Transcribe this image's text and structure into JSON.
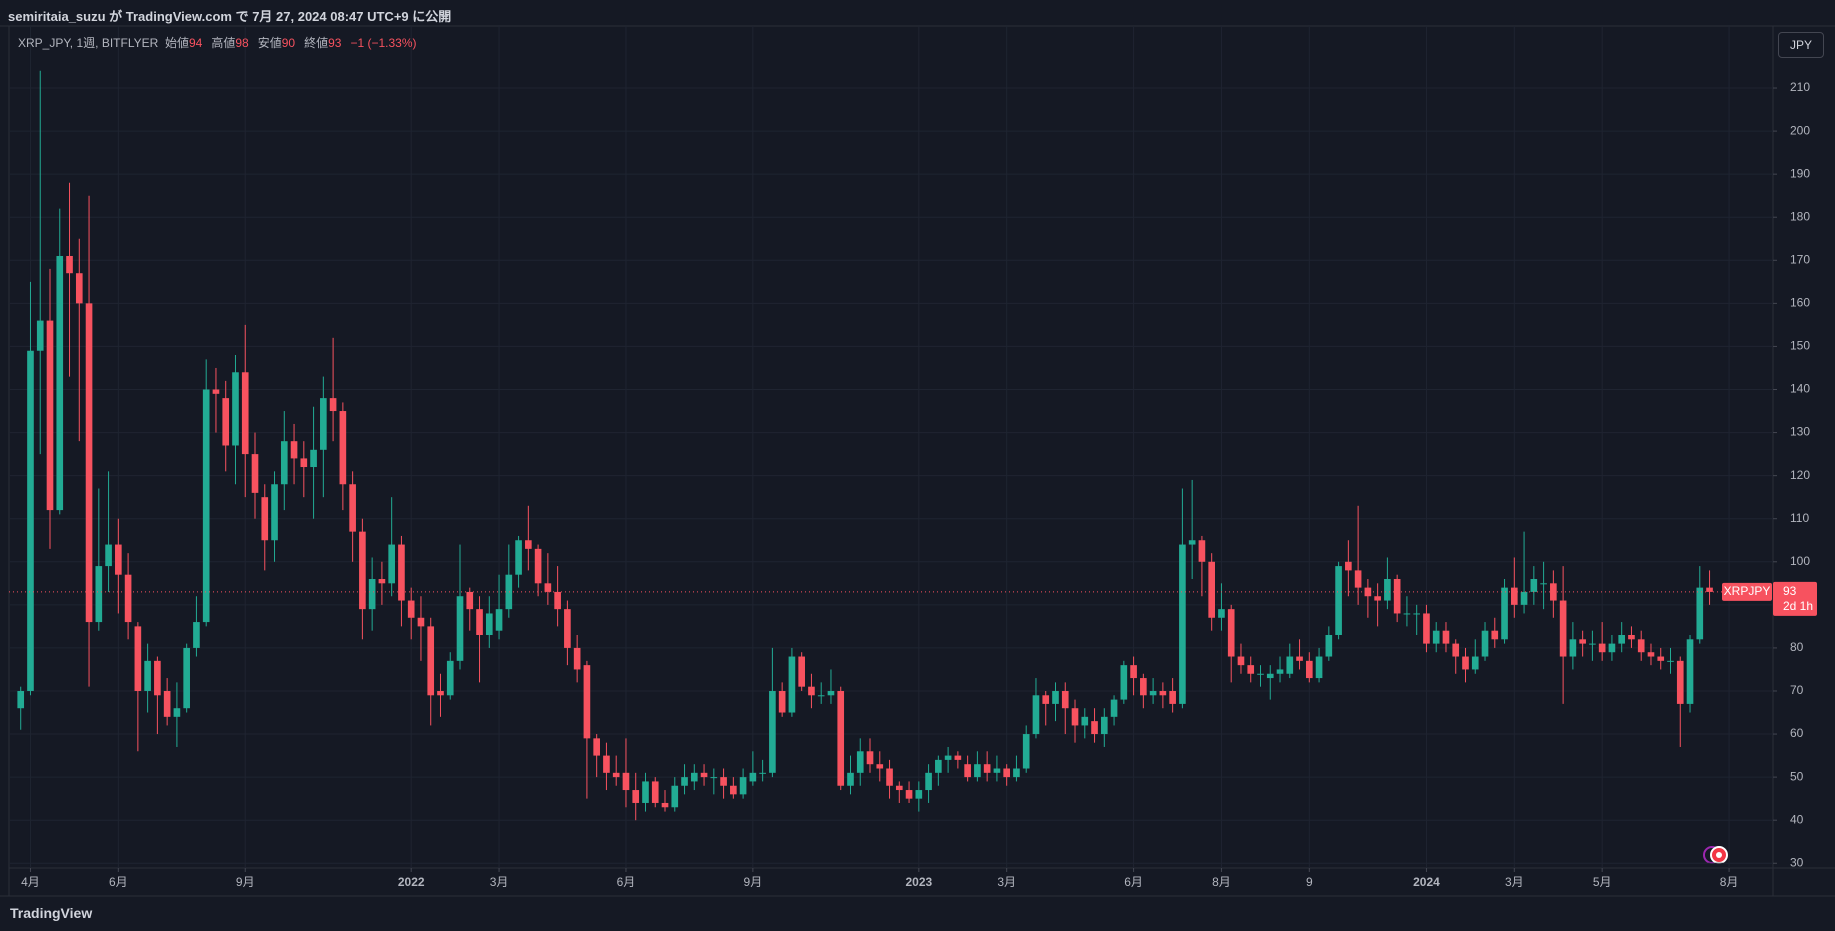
{
  "header": {
    "text": "semiritaia_suzu が TradingView.com で 7月 27, 2024 08:47 UTC+9 に公開"
  },
  "footer": {
    "text": "TradingView"
  },
  "currency_button": "JPY",
  "chart_data": {
    "type": "candlestick",
    "legend": {
      "symbol": "XRP_JPY, 1週, BITFLYER",
      "open_label": "始値",
      "high_label": "高値",
      "low_label": "安値",
      "close_label": "終値",
      "change_label": "−1 (−1.33%)"
    },
    "price_tag": {
      "name": "XRPJPY",
      "countdown": "2d 1h"
    },
    "up_color": "#22ab94",
    "down_color": "#f7525f",
    "grid": true,
    "xlim": [
      -1.2,
      179.5
    ],
    "xticks": [
      {
        "value": 1,
        "label": "4月"
      },
      {
        "value": 10,
        "label": "6月"
      },
      {
        "value": 23,
        "label": "9月"
      },
      {
        "value": 40,
        "label": "2022"
      },
      {
        "value": 49,
        "label": "3月"
      },
      {
        "value": 62,
        "label": "6月"
      },
      {
        "value": 75,
        "label": "9月"
      },
      {
        "value": 92,
        "label": "2023"
      },
      {
        "value": 101,
        "label": "3月"
      },
      {
        "value": 114,
        "label": "6月"
      },
      {
        "value": 123,
        "label": "8月"
      },
      {
        "value": 132,
        "label": "9"
      },
      {
        "value": 144,
        "label": "2024"
      },
      {
        "value": 153,
        "label": "3月"
      },
      {
        "value": 162,
        "label": "5月"
      },
      {
        "value": 175,
        "label": "8月"
      }
    ],
    "ylim": [
      28.9,
      224.4
    ],
    "yticks": [
      30,
      40,
      50,
      60,
      70,
      80,
      90,
      100,
      110,
      120,
      130,
      140,
      150,
      160,
      170,
      180,
      190,
      200,
      210
    ],
    "open": [
      66,
      70,
      149,
      156,
      112,
      171,
      167,
      160,
      86,
      99,
      104,
      97,
      85,
      70,
      77,
      70,
      64,
      66,
      80,
      86,
      140,
      138,
      127,
      144,
      125,
      115,
      105,
      118,
      128,
      124,
      122,
      126,
      138,
      135,
      118,
      107,
      89,
      96,
      95,
      104,
      91,
      87,
      85,
      70,
      69,
      77,
      93,
      89,
      83,
      84,
      89,
      97,
      105,
      103,
      95,
      93,
      89,
      80,
      76,
      59,
      55,
      51,
      51,
      47,
      44,
      49,
      44,
      43,
      48,
      49,
      51,
      50,
      50,
      48,
      46,
      49,
      51,
      51,
      70,
      65,
      78,
      71,
      69,
      69,
      70,
      48,
      51,
      56,
      53,
      52,
      48,
      47,
      45,
      47,
      51,
      54,
      55,
      53,
      50,
      53,
      51,
      52,
      50,
      52,
      60,
      69,
      67,
      70,
      66,
      62,
      63,
      60,
      64,
      68,
      76,
      73,
      69,
      70,
      70,
      67,
      104,
      105,
      100,
      87,
      89,
      78,
      76,
      74,
      73,
      74,
      74,
      78,
      77,
      73,
      78,
      83,
      100,
      98,
      94,
      92,
      91,
      96,
      88,
      88,
      88,
      81,
      84,
      81,
      78,
      75,
      78,
      84,
      82,
      94,
      90,
      93,
      95,
      95,
      91,
      78,
      82,
      81,
      81,
      79,
      81,
      83,
      82,
      79,
      78,
      77,
      77,
      67,
      82,
      94
    ],
    "high": [
      71,
      165,
      214,
      168,
      182,
      188,
      175,
      185,
      117,
      121,
      110,
      102,
      86,
      81,
      78,
      73,
      72,
      81,
      92,
      147,
      145,
      142,
      148,
      155,
      130,
      118,
      121,
      135,
      132,
      128,
      136,
      143,
      152,
      137,
      121,
      110,
      101,
      100,
      115,
      106,
      94,
      92,
      87,
      74,
      79,
      104,
      94,
      92,
      92,
      97,
      104,
      106,
      113,
      104,
      102,
      99,
      91,
      83,
      77,
      60,
      58,
      55,
      59,
      51,
      51,
      50,
      47,
      50,
      53,
      53,
      53,
      52,
      52,
      50,
      52,
      56,
      54,
      80,
      72,
      80,
      79,
      74,
      72,
      75,
      71,
      55,
      59,
      59,
      56,
      54,
      49,
      49,
      49,
      53,
      55,
      57,
      56,
      55,
      56,
      56,
      55,
      53,
      55,
      62,
      73,
      70,
      72,
      72,
      68,
      66,
      66,
      66,
      69,
      77,
      78,
      74,
      73,
      72,
      73,
      117,
      119,
      106,
      102,
      95,
      90,
      81,
      78,
      76,
      76,
      78,
      81,
      82,
      79,
      80,
      85,
      100,
      105,
      113,
      96,
      95,
      101,
      97,
      92,
      90,
      90,
      86,
      86,
      82,
      80,
      82,
      86,
      87,
      96,
      101,
      107,
      99,
      100,
      98,
      99,
      86,
      84,
      84,
      86,
      83,
      86,
      85,
      84,
      81,
      80,
      80,
      78,
      83,
      99,
      98
    ],
    "low": [
      61,
      69,
      125,
      103,
      111,
      143,
      128,
      71,
      84,
      93,
      88,
      82,
      56,
      65,
      60,
      62,
      57,
      65,
      78,
      85,
      130,
      121,
      118,
      115,
      110,
      98,
      100,
      112,
      118,
      115,
      110,
      115,
      128,
      112,
      100,
      82,
      84,
      90,
      92,
      85,
      82,
      77,
      62,
      64,
      68,
      75,
      84,
      72,
      80,
      82,
      87,
      94,
      98,
      92,
      90,
      85,
      76,
      72,
      45,
      50,
      47,
      48,
      43,
      40,
      42,
      43,
      42,
      42,
      46,
      47,
      48,
      46,
      45,
      45,
      45,
      48,
      49,
      50,
      64,
      64,
      70,
      66,
      67,
      67,
      47,
      46,
      48,
      51,
      49,
      45,
      44,
      44,
      42,
      44,
      48,
      51,
      52,
      49,
      49,
      49,
      49,
      48,
      49,
      51,
      59,
      62,
      63,
      60,
      58,
      59,
      58,
      57,
      62,
      67,
      69,
      66,
      67,
      66,
      65,
      66,
      96,
      92,
      84,
      84,
      72,
      74,
      72,
      71,
      68,
      72,
      73,
      75,
      72,
      72,
      77,
      82,
      92,
      90,
      87,
      85,
      89,
      86,
      85,
      83,
      79,
      79,
      79,
      74,
      72,
      74,
      77,
      80,
      81,
      87,
      88,
      90,
      89,
      87,
      67,
      75,
      78,
      77,
      77,
      77,
      79,
      80,
      77,
      76,
      75,
      74,
      57,
      65,
      81,
      90
    ],
    "close": [
      70,
      149,
      156,
      112,
      171,
      167,
      160,
      86,
      99,
      104,
      97,
      86,
      70,
      77,
      69,
      64,
      66,
      80,
      86,
      140,
      139,
      127,
      144,
      125,
      116,
      105,
      118,
      128,
      124,
      122,
      126,
      138,
      135,
      118,
      107,
      89,
      96,
      95,
      104,
      91,
      87,
      85,
      69,
      69,
      77,
      92,
      89,
      83,
      88,
      89,
      97,
      105,
      103,
      95,
      93,
      89,
      80,
      75,
      59,
      55,
      51,
      50,
      47,
      44,
      49,
      44,
      43,
      48,
      50,
      51,
      50,
      50,
      48,
      46,
      50,
      51,
      51,
      70,
      65,
      78,
      71,
      69,
      69,
      70,
      48,
      51,
      56,
      53,
      52,
      48,
      47,
      45,
      47,
      51,
      54,
      55,
      54,
      50,
      53,
      51,
      52,
      50,
      52,
      60,
      69,
      67,
      70,
      66,
      62,
      64,
      60,
      64,
      68,
      76,
      73,
      69,
      70,
      69,
      67,
      104,
      105,
      100,
      87,
      89,
      78,
      76,
      74,
      74,
      74,
      75,
      78,
      77,
      73,
      78,
      83,
      99,
      98,
      94,
      92,
      91,
      96,
      88,
      88,
      88,
      81,
      84,
      81,
      78,
      75,
      78,
      84,
      82,
      94,
      90,
      93,
      96,
      95,
      91,
      78,
      82,
      81,
      81,
      79,
      81,
      83,
      82,
      79,
      78,
      77,
      77,
      67,
      82,
      94,
      93
    ]
  }
}
